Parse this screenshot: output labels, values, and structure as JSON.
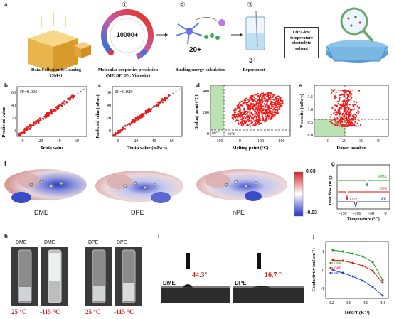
{
  "panels": {
    "a": {
      "label": "a",
      "step1": "Data Collection&Cleaning",
      "step1_sub": "(3M+)",
      "circle1": "①",
      "gauge_value": "10000+",
      "step2": "Molecular properties prediction",
      "step2_sub": "(MP, BP, DN, Viscosity)",
      "circle2": "②",
      "count2": "20+",
      "step3": "Binding energy calculation",
      "circle3": "③",
      "count3": "3+",
      "step4": "Experiment",
      "box_line1": "Ultra-low",
      "box_line2": "temperature",
      "box_line3": "electrolyte",
      "box_line4": "solvent"
    },
    "b": {
      "label": "b",
      "r2": "R²=0.905",
      "xlabel": "Truth value",
      "ylabel": "Predicted value",
      "xticks": [
        "0",
        "20",
        "40",
        "60"
      ],
      "yticks": [
        "0",
        "20",
        "40",
        "60"
      ]
    },
    "c": {
      "label": "c",
      "r2": "R²=0.929",
      "xlabel": "Truth value (mPa·s)",
      "ylabel": "Predicted value (mPa·s)",
      "xticks": [
        "0",
        "20",
        "40",
        "60"
      ],
      "yticks": [
        "0",
        "20",
        "40",
        "60"
      ]
    },
    "d": {
      "label": "d",
      "xlabel": "Melting point (°C)",
      "ylabel": "Boiling point (°C)",
      "ann_bp": "80°C",
      "ann_mp": "-30°C",
      "xticks": [
        "-100",
        "0",
        "100",
        "200"
      ],
      "yticks": [
        "0",
        "200",
        "400"
      ]
    },
    "e": {
      "label": "e",
      "xlabel": "Donor number",
      "ylabel": "Viscosity (mPa·s)",
      "xticks": [
        "10",
        "20",
        "30",
        "40"
      ],
      "yticks": [
        "0.0",
        "0.5",
        "1.0",
        "1.5"
      ]
    },
    "f": {
      "label": "f",
      "mol1": "DME",
      "mol2": "DPE",
      "mol3": "nPE",
      "scale_max": "0.03",
      "scale_min": "-0.03"
    },
    "g": {
      "label": "g",
      "xlabel": "Temperature (°C)",
      "ylabel": "Heat flow (W/g)",
      "s1": "DME",
      "s2": "DPE",
      "s3": "nPE",
      "ann": "130°C",
      "xticks": [
        "-150",
        "-100",
        "-50",
        "0"
      ],
      "colors": {
        "DME": "#1a9a1a",
        "DPE": "#dd1111",
        "nPE": "#1b3fd6"
      }
    },
    "h": {
      "label": "h",
      "v1": "DME",
      "v2": "DME",
      "v3": "DPE",
      "v4": "DPE",
      "t1": "25 °C",
      "t2": "-115 °C",
      "t3": "25 °C",
      "t4": "-115 °C"
    },
    "i": {
      "label": "i",
      "s1": "DME",
      "a1": "44.3°",
      "s2": "DPE",
      "a2": "16.7 °"
    },
    "j": {
      "label": "j",
      "xlabel": "1000/T (K⁻¹)",
      "ylabel": "Conductivity (mS cm⁻¹)",
      "l1": "DME",
      "l2": "DPE",
      "l3": "nPE",
      "xticks": [
        "3.2",
        "3.6",
        "4.0",
        "4.4"
      ],
      "yticks": [
        "-1",
        "0",
        "1"
      ]
    }
  }
}
